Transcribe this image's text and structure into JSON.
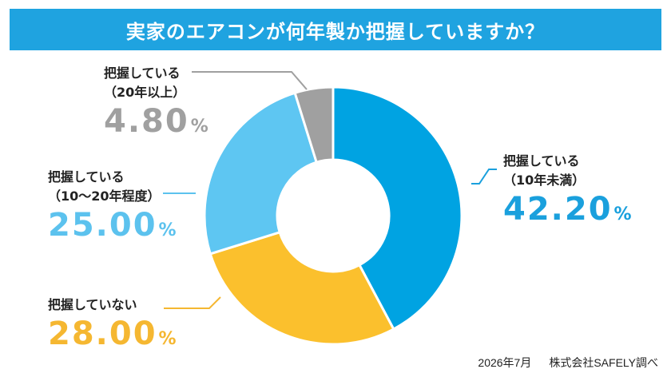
{
  "title": "実家のエアコンが何年製か把握していますか？",
  "footer": {
    "date": "2026年7月",
    "source": "株式会社SAFELY調べ"
  },
  "chart_data": {
    "type": "pie",
    "donut": true,
    "categories": [
      "把握している（10年未満）",
      "把握していない",
      "把握している（10～20年程度）",
      "把握している（20年以上）"
    ],
    "values": [
      42.2,
      28.0,
      25.0,
      4.8
    ],
    "colors": [
      "#00a3e2",
      "#fbc02d",
      "#5ec6f2",
      "#a0a0a0"
    ],
    "labels": [
      {
        "line1": "把握している",
        "line2": "（10年未満）",
        "percent": "42.20",
        "unit": "%",
        "color": "#1aa0dd"
      },
      {
        "line1": "把握していない",
        "line2": "",
        "percent": "28.00",
        "unit": "%",
        "color": "#f5b731"
      },
      {
        "line1": "把握している",
        "line2": "（10～20年程度）",
        "percent": "25.00",
        "unit": "%",
        "color": "#5cc2ee"
      },
      {
        "line1": "把握している",
        "line2": "（20年以上）",
        "percent": "4.80",
        "unit": "%",
        "color": "#a0a0a0"
      }
    ]
  }
}
